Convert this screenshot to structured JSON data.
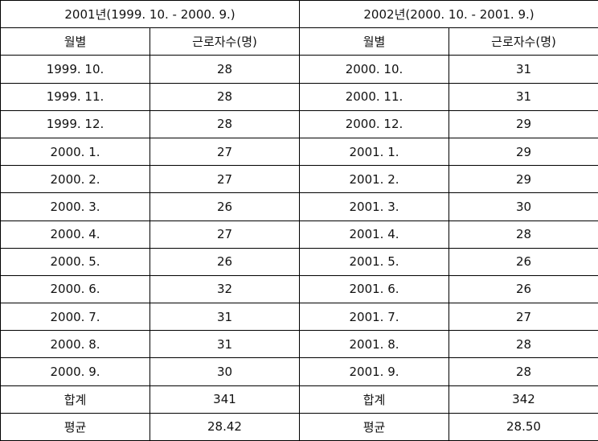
{
  "table": {
    "groups": [
      "2001년(1999. 10. - 2000. 9.)",
      "2002년(2000. 10. - 2001. 9.)"
    ],
    "columns": [
      "월별",
      "근로자수(명)",
      "월별",
      "근로자수(명)"
    ],
    "rows": [
      [
        "1999. 10.",
        "28",
        "2000. 10.",
        "31"
      ],
      [
        "1999. 11.",
        "28",
        "2000. 11.",
        "31"
      ],
      [
        "1999. 12.",
        "28",
        "2000. 12.",
        "29"
      ],
      [
        "2000. 1.",
        "27",
        "2001. 1.",
        "29"
      ],
      [
        "2000. 2.",
        "27",
        "2001. 2.",
        "29"
      ],
      [
        "2000. 3.",
        "26",
        "2001. 3.",
        "30"
      ],
      [
        "2000. 4.",
        "27",
        "2001. 4.",
        "28"
      ],
      [
        "2000. 5.",
        "26",
        "2001. 5.",
        "26"
      ],
      [
        "2000. 6.",
        "32",
        "2001. 6.",
        "26"
      ],
      [
        "2000. 7.",
        "31",
        "2001. 7.",
        "27"
      ],
      [
        "2000. 8.",
        "31",
        "2001. 8.",
        "28"
      ],
      [
        "2000. 9.",
        "30",
        "2001. 9.",
        "28"
      ],
      [
        "합계",
        "341",
        "합계",
        "342"
      ],
      [
        "평균",
        "28.42",
        "평균",
        "28.50"
      ]
    ]
  }
}
